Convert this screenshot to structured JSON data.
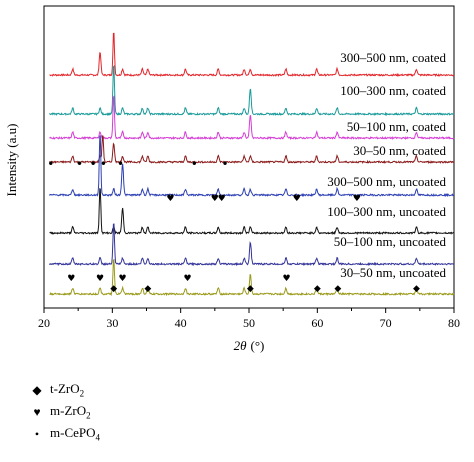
{
  "chart_data": {
    "type": "line",
    "xlabel_main": "2θ",
    "xlabel_unit": "(°)",
    "ylabel": "Intensity (a.u)",
    "xlim": [
      20,
      80
    ],
    "xticks": [
      20,
      30,
      40,
      50,
      60,
      70,
      80
    ],
    "grid": false,
    "peaks_common": [
      24.2,
      28.2,
      30.2,
      31.5,
      34.4,
      35.2,
      40.7,
      45.5,
      49.3,
      50.2,
      55.4,
      59.9,
      62.9,
      74.5
    ],
    "series": [
      {
        "name": "300–500 nm, coated",
        "color": "#e3262b",
        "main_peak": 30.2,
        "secondary_peak": 28.2
      },
      {
        "name": "100–300 nm, coated",
        "color": "#1a9a9a",
        "main_peak": 30.2,
        "secondary_peak": 50.2
      },
      {
        "name": "50–100 nm, coated",
        "color": "#d43fd4",
        "main_peak": 30.2,
        "secondary_peak": 50.2
      },
      {
        "name": "30–50 nm, coated",
        "color": "#8b1a1a",
        "main_peak": 28.6,
        "secondary_peak": 30.2
      },
      {
        "name": "300–500 nm, uncoated",
        "color": "#2c3fb3",
        "main_peak": 28.2,
        "secondary_peak": 31.5
      },
      {
        "name": "100–300 nm, uncoated",
        "color": "#111111",
        "main_peak": 28.2,
        "secondary_peak": 31.5
      },
      {
        "name": "50–100 nm, uncoated",
        "color": "#34349a",
        "main_peak": 30.2,
        "secondary_peak": 50.2
      },
      {
        "name": "30–50 nm, uncoated",
        "color": "#9a9a1a",
        "main_peak": 30.2,
        "secondary_peak": 50.2
      }
    ],
    "markers": {
      "t_zro2": [
        30.2,
        35.2,
        50.2,
        60.0,
        63.0,
        74.5
      ],
      "m_zro2_bottom": [
        24.0,
        28.2,
        31.5,
        41.0,
        55.5
      ],
      "m_zro2_mid": [
        38.5,
        45.0,
        46.0,
        57.0,
        65.8
      ],
      "m_cepo4": [
        21.0,
        25.2,
        27.2,
        28.7,
        31.2,
        42.0,
        46.5
      ]
    }
  },
  "legend": [
    {
      "symbol": "diamond",
      "label": "t-ZrO",
      "sub": "2",
      "suffix": ""
    },
    {
      "symbol": "heart",
      "label": "m-ZrO",
      "sub": "2",
      "suffix": ""
    },
    {
      "symbol": "dot",
      "label": "m-CePO",
      "sub": "4",
      "suffix": ""
    }
  ]
}
